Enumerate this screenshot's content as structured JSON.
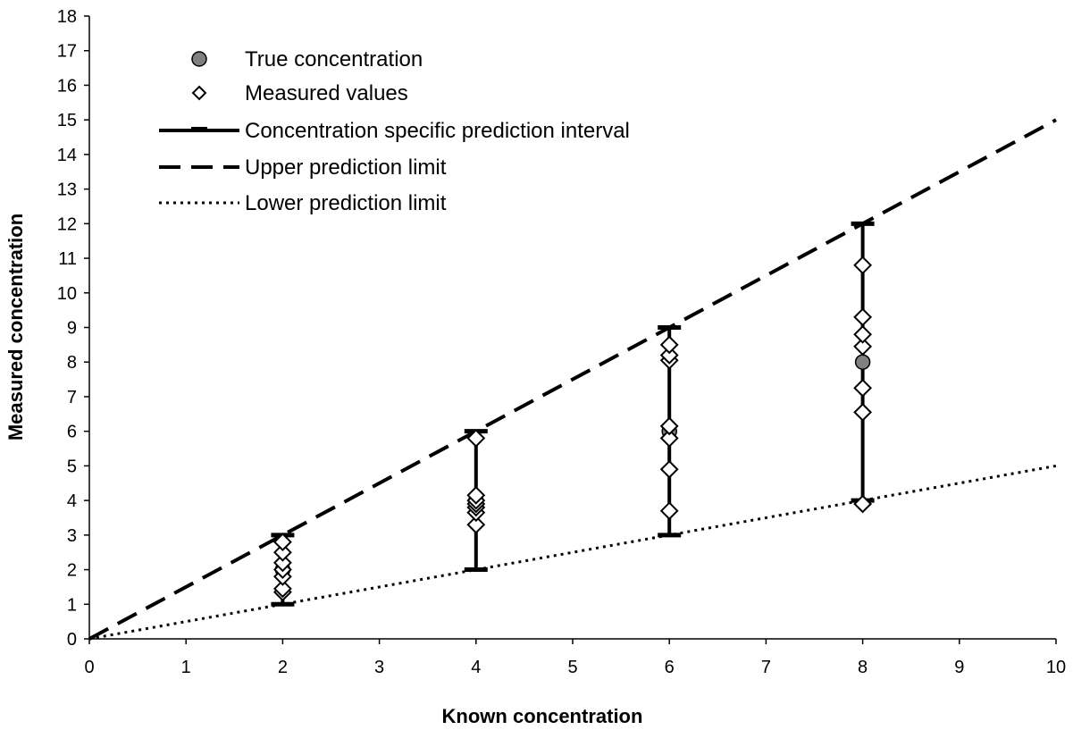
{
  "chart_data": {
    "type": "scatter",
    "title": "",
    "xlabel": "Known concentration",
    "ylabel": "Measured concentration",
    "xlim": [
      0,
      10
    ],
    "ylim": [
      0,
      18
    ],
    "x_ticks": [
      0,
      1,
      2,
      3,
      4,
      5,
      6,
      7,
      8,
      9,
      10
    ],
    "y_ticks": [
      0,
      1,
      2,
      3,
      4,
      5,
      6,
      7,
      8,
      9,
      10,
      11,
      12,
      13,
      14,
      15,
      16,
      17,
      18
    ],
    "grid": false,
    "legend_position": "top-left",
    "legend": [
      {
        "key": "true",
        "label": "True concentration",
        "symbol": "gray-circle"
      },
      {
        "key": "measured",
        "label": "Measured values",
        "symbol": "open-diamond"
      },
      {
        "key": "interval",
        "label": "Concentration specific prediction interval",
        "symbol": "solid-line-with-caps"
      },
      {
        "key": "upper",
        "label": "Upper prediction limit",
        "symbol": "dashed-line"
      },
      {
        "key": "lower",
        "label": "Lower prediction limit",
        "symbol": "dotted-line"
      }
    ],
    "true_concentration": [
      {
        "x": 2,
        "y": 2
      },
      {
        "x": 4,
        "y": 4
      },
      {
        "x": 6,
        "y": 6
      },
      {
        "x": 8,
        "y": 8
      }
    ],
    "measured_values": [
      {
        "x": 2,
        "y": [
          1.35,
          1.45,
          1.8,
          2.0,
          2.2,
          2.5,
          2.8
        ]
      },
      {
        "x": 4,
        "y": [
          3.3,
          3.65,
          3.8,
          3.9,
          4.0,
          4.15,
          5.8
        ]
      },
      {
        "x": 6,
        "y": [
          3.7,
          4.9,
          5.8,
          6.15,
          8.05,
          8.2,
          8.5
        ]
      },
      {
        "x": 8,
        "y": [
          3.9,
          6.55,
          7.25,
          8.45,
          8.8,
          9.3,
          10.8
        ]
      }
    ],
    "prediction_intervals": [
      {
        "x": 2,
        "lower": 1,
        "upper": 3
      },
      {
        "x": 4,
        "lower": 2,
        "upper": 6
      },
      {
        "x": 6,
        "lower": 3,
        "upper": 9
      },
      {
        "x": 8,
        "lower": 4,
        "upper": 12
      }
    ],
    "upper_limit_line": {
      "x": [
        0,
        10
      ],
      "y": [
        0,
        15
      ]
    },
    "lower_limit_line": {
      "x": [
        0,
        10
      ],
      "y": [
        0,
        5
      ]
    },
    "colors": {
      "line": "#000000",
      "true_marker_fill": "#808080",
      "measured_marker_fill": "#ffffff"
    }
  }
}
